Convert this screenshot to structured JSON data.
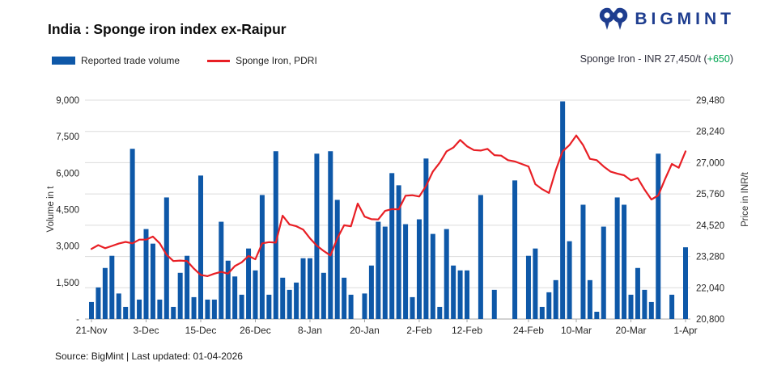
{
  "header": {
    "title": "India : Sponge iron index ex-Raipur",
    "brand": "BIGMINT",
    "price_badge": {
      "text": "Sponge Iron - INR 27,450/t ",
      "open": "(",
      "change": "+650",
      "close": ")"
    }
  },
  "legend": [
    {
      "label": "Reported trade volume",
      "type": "bar",
      "color": "#0e58a8"
    },
    {
      "label": "Sponge Iron, PDRI",
      "type": "line",
      "color": "#e81f25"
    }
  ],
  "footer": {
    "source": "Source: BigMint | Last updated: 01-04-2026"
  },
  "colors": {
    "bar": "#0e58a8",
    "line": "#e81f25",
    "grid": "#dcdcdc",
    "axis": "#a6a6a6",
    "tick_text": "#262626"
  },
  "chart_data": {
    "type": "bar",
    "subtype": "bar+line dual-axis",
    "title": "India : Sponge iron index ex-Raipur",
    "grid": "horizontal",
    "legend_position": "top-left",
    "x_tick_labels": [
      "21-Nov",
      "3-Dec",
      "15-Dec",
      "26-Dec",
      "8-Jan",
      "20-Jan",
      "2-Feb",
      "12-Feb",
      "24-Feb",
      "10-Mar",
      "20-Mar",
      "1-Apr"
    ],
    "x_tick_indices": [
      0,
      8,
      16,
      24,
      32,
      40,
      48,
      55,
      64,
      71,
      79,
      87
    ],
    "y_left": {
      "label": "Volume in t",
      "min": 0,
      "max": 9000,
      "ticks": [
        "9,000",
        "7,500",
        "6,000",
        "4,500",
        "3,000",
        "1,500",
        "-"
      ]
    },
    "y_right": {
      "label": "Price in INR/t",
      "min": 20800,
      "max": 29480,
      "ticks": [
        "29,480",
        "28,240",
        "27,000",
        "25,760",
        "24,520",
        "23,280",
        "22,040",
        "20,800"
      ]
    },
    "series": [
      {
        "name": "Reported trade volume",
        "type": "bar",
        "axis": "left",
        "color": "#0e58a8",
        "values": [
          700,
          1300,
          2100,
          2600,
          1050,
          500,
          7000,
          800,
          3700,
          3100,
          800,
          5000,
          500,
          1900,
          2600,
          900,
          5900,
          800,
          800,
          4000,
          2400,
          1750,
          1000,
          2900,
          2000,
          5100,
          1000,
          6900,
          1700,
          1200,
          1500,
          2500,
          2500,
          6800,
          1900,
          6900,
          4900,
          1700,
          1000,
          0,
          1050,
          2200,
          4000,
          3800,
          6000,
          5500,
          3900,
          900,
          4100,
          6600,
          3500,
          500,
          3700,
          2200,
          2000,
          2000,
          0,
          5100,
          0,
          1200,
          0,
          0,
          5700,
          0,
          2600,
          2900,
          500,
          1100,
          1600,
          8950,
          3200,
          0,
          4700,
          1600,
          300,
          3800,
          0,
          5000,
          4700,
          1000,
          2100,
          1200,
          700,
          6800,
          0,
          1000,
          0,
          2950
        ]
      },
      {
        "name": "Sponge Iron, PDRI",
        "type": "line",
        "axis": "right",
        "color": "#e81f25",
        "values": [
          23580,
          23730,
          23610,
          23700,
          23790,
          23860,
          23800,
          23950,
          23950,
          24070,
          23800,
          23350,
          23100,
          23120,
          23100,
          22800,
          22550,
          22500,
          22600,
          22670,
          22600,
          22900,
          23050,
          23300,
          23170,
          23800,
          23850,
          23830,
          24900,
          24550,
          24480,
          24350,
          24000,
          23710,
          23500,
          23320,
          24000,
          24520,
          24480,
          25380,
          24860,
          24760,
          24750,
          25090,
          25160,
          25150,
          25690,
          25710,
          25660,
          26080,
          26650,
          27000,
          27450,
          27600,
          27900,
          27650,
          27500,
          27480,
          27550,
          27300,
          27280,
          27100,
          27050,
          26950,
          26850,
          26150,
          25950,
          25800,
          26700,
          27450,
          27700,
          28080,
          27700,
          27150,
          27100,
          26850,
          26650,
          26570,
          26500,
          26300,
          26390,
          25930,
          25540,
          25700,
          26350,
          26950,
          26800,
          27450
        ]
      }
    ],
    "latest": {
      "price": 27450,
      "change": 650
    }
  }
}
